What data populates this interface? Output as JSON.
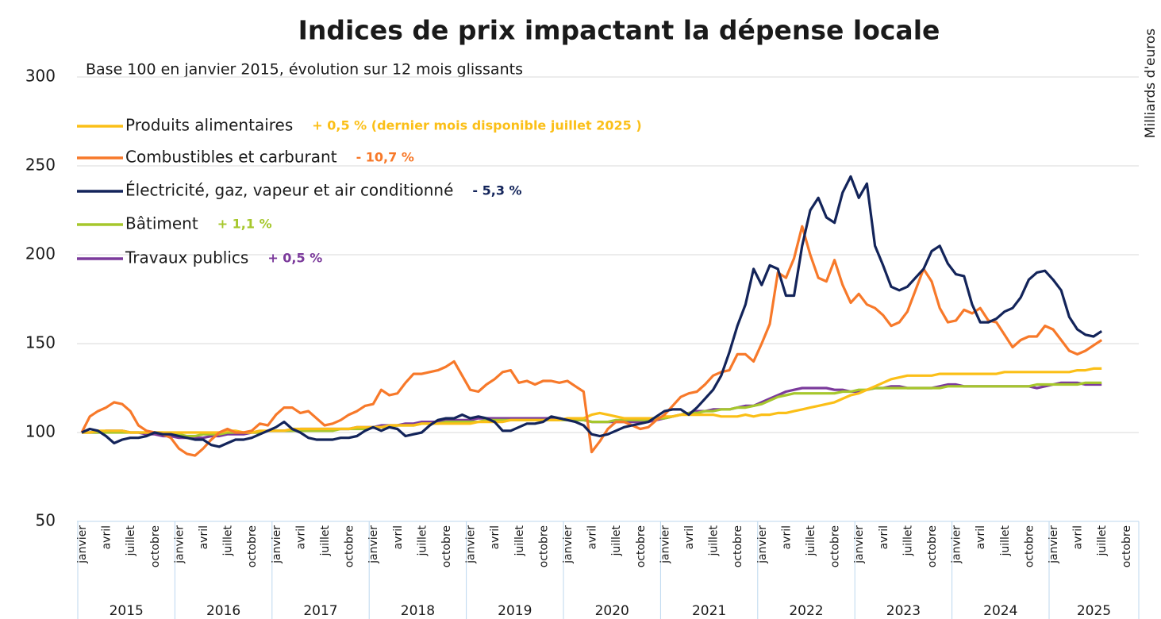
{
  "chart_data": {
    "type": "line",
    "title": "Indices de prix impactant la dépense locale",
    "subtitle": "Base 100 en janvier 2015, évolution sur 12 mois glissants",
    "side_label": "Milliards d'euros",
    "legend": "top-left",
    "grid": true,
    "ylim": [
      50,
      300
    ],
    "yticks": [
      50,
      100,
      150,
      200,
      250,
      300
    ],
    "year_groups": [
      "2015",
      "2016",
      "2017",
      "2018",
      "2019",
      "2020",
      "2021",
      "2022",
      "2023",
      "2024",
      "2025"
    ],
    "categories": [
      "janvier",
      null,
      null,
      "avril",
      null,
      null,
      "juillet",
      null,
      null,
      "octobre",
      null,
      null,
      "janvier",
      null,
      null,
      "avril",
      null,
      null,
      "juillet",
      null,
      null,
      "octobre",
      null,
      null,
      "janvier",
      null,
      null,
      "avril",
      null,
      null,
      "juillet",
      null,
      null,
      "octobre",
      null,
      null,
      "janvier",
      null,
      null,
      "avril",
      null,
      null,
      "juillet",
      null,
      null,
      "octobre",
      null,
      null,
      "janvier",
      null,
      null,
      "avril",
      null,
      null,
      "juillet",
      null,
      null,
      "octobre",
      null,
      null,
      "janvier",
      null,
      null,
      "avril",
      null,
      null,
      "juillet",
      null,
      null,
      "octobre",
      null,
      null,
      "janvier",
      null,
      null,
      "avril",
      null,
      null,
      "juillet",
      null,
      null,
      "octobre",
      null,
      null,
      "janvier",
      null,
      null,
      "avril",
      null,
      null,
      "juillet",
      null,
      null,
      "octobre",
      null,
      null,
      "janvier",
      null,
      null,
      "avril",
      null,
      null,
      "juillet",
      null,
      null,
      "octobre",
      null,
      null,
      "janvier",
      null,
      null,
      "avril",
      null,
      null,
      "juillet",
      null,
      null,
      "octobre",
      null,
      null,
      "janvier",
      null,
      null,
      "avril",
      null,
      null,
      "juillet",
      null,
      null,
      "octobre"
    ],
    "series": [
      {
        "name": "Produits alimentaires",
        "change": "+ 0,5 % (dernier mois disponible  juillet 2025 )",
        "color": "#fbbf17",
        "values": [
          100,
          100,
          101,
          101,
          101,
          101,
          100,
          100,
          100,
          100,
          100,
          100,
          100,
          100,
          100,
          100,
          100,
          100,
          101,
          101,
          100,
          100,
          101,
          101,
          101,
          101,
          102,
          102,
          102,
          102,
          102,
          102,
          102,
          102,
          103,
          103,
          103,
          103,
          104,
          104,
          104,
          104,
          105,
          105,
          105,
          105,
          105,
          105,
          105,
          106,
          106,
          106,
          106,
          107,
          107,
          107,
          107,
          107,
          107,
          107,
          108,
          108,
          108,
          110,
          111,
          110,
          109,
          108,
          108,
          108,
          108,
          108,
          109,
          109,
          110,
          110,
          110,
          110,
          110,
          109,
          109,
          109,
          110,
          109,
          110,
          110,
          111,
          111,
          112,
          113,
          114,
          115,
          116,
          117,
          119,
          121,
          122,
          124,
          126,
          128,
          130,
          131,
          132,
          132,
          132,
          132,
          133,
          133,
          133,
          133,
          133,
          133,
          133,
          133,
          134,
          134,
          134,
          134,
          134,
          134,
          134,
          134,
          134,
          135,
          135,
          136,
          136,
          null,
          null,
          null
        ]
      },
      {
        "name": "Combustibles et carburant",
        "change": "- 10,7 %",
        "color": "#f7792a",
        "values": [
          100,
          109,
          112,
          114,
          117,
          116,
          112,
          104,
          101,
          100,
          99,
          97,
          91,
          88,
          87,
          91,
          96,
          100,
          102,
          100,
          100,
          101,
          105,
          104,
          110,
          114,
          114,
          111,
          112,
          108,
          104,
          105,
          107,
          110,
          112,
          115,
          116,
          124,
          121,
          122,
          128,
          133,
          133,
          134,
          135,
          137,
          140,
          132,
          124,
          123,
          127,
          130,
          134,
          135,
          128,
          129,
          127,
          129,
          129,
          128,
          129,
          126,
          123,
          89,
          95,
          102,
          106,
          106,
          104,
          102,
          103,
          107,
          110,
          115,
          120,
          122,
          123,
          127,
          132,
          134,
          135,
          144,
          144,
          140,
          150,
          161,
          190,
          187,
          198,
          216,
          200,
          187,
          185,
          197,
          183,
          173,
          178,
          172,
          170,
          166,
          160,
          162,
          168,
          180,
          192,
          185,
          170,
          162,
          163,
          169,
          167,
          170,
          163,
          162,
          155,
          148,
          152,
          154,
          154,
          160,
          158,
          152,
          146,
          144,
          146,
          149,
          152,
          null,
          null,
          null
        ]
      },
      {
        "name": "Électricité, gaz, vapeur et air conditionné",
        "change": "- 5,3 %",
        "color": "#13245a",
        "values": [
          100,
          102,
          101,
          98,
          94,
          96,
          97,
          97,
          98,
          100,
          99,
          99,
          98,
          97,
          96,
          96,
          93,
          92,
          94,
          96,
          96,
          97,
          99,
          101,
          103,
          106,
          102,
          100,
          97,
          96,
          96,
          96,
          97,
          97,
          98,
          101,
          103,
          101,
          103,
          102,
          98,
          99,
          100,
          104,
          107,
          108,
          108,
          110,
          108,
          109,
          108,
          106,
          101,
          101,
          103,
          105,
          105,
          106,
          109,
          108,
          107,
          106,
          104,
          99,
          98,
          99,
          101,
          103,
          104,
          105,
          106,
          109,
          112,
          113,
          113,
          110,
          114,
          119,
          124,
          132,
          145,
          160,
          172,
          192,
          183,
          194,
          192,
          177,
          177,
          205,
          225,
          232,
          221,
          218,
          235,
          244,
          232,
          240,
          205,
          194,
          182,
          180,
          182,
          187,
          192,
          202,
          205,
          195,
          189,
          188,
          172,
          162,
          162,
          164,
          168,
          170,
          176,
          186,
          190,
          191,
          186,
          180,
          165,
          158,
          155,
          154,
          157,
          null,
          null,
          null
        ]
      },
      {
        "name": "Bâtiment",
        "change": "+ 1,1 %",
        "color": "#a6c72c",
        "values": [
          100,
          100,
          100,
          100,
          100,
          100,
          100,
          100,
          100,
          100,
          100,
          99,
          99,
          98,
          98,
          99,
          99,
          99,
          100,
          100,
          100,
          100,
          100,
          101,
          101,
          101,
          101,
          101,
          101,
          101,
          101,
          101,
          102,
          102,
          102,
          102,
          103,
          103,
          103,
          104,
          104,
          104,
          105,
          105,
          105,
          106,
          106,
          106,
          106,
          106,
          107,
          107,
          107,
          107,
          107,
          107,
          107,
          107,
          107,
          107,
          107,
          107,
          107,
          106,
          106,
          106,
          107,
          107,
          107,
          107,
          107,
          108,
          108,
          109,
          110,
          111,
          111,
          112,
          112,
          113,
          113,
          114,
          114,
          115,
          116,
          118,
          120,
          121,
          122,
          122,
          122,
          122,
          122,
          122,
          123,
          123,
          124,
          124,
          125,
          125,
          125,
          125,
          125,
          125,
          125,
          125,
          125,
          126,
          126,
          126,
          126,
          126,
          126,
          126,
          126,
          126,
          126,
          126,
          127,
          127,
          127,
          127,
          127,
          127,
          128,
          128,
          128,
          null,
          null,
          null
        ]
      },
      {
        "name": "Travaux publics",
        "change": "+ 0,5 %",
        "color": "#7b3a9b",
        "values": [
          100,
          100,
          100,
          101,
          101,
          101,
          100,
          100,
          99,
          99,
          98,
          98,
          97,
          97,
          97,
          97,
          98,
          98,
          99,
          99,
          99,
          100,
          100,
          101,
          101,
          101,
          101,
          102,
          102,
          102,
          102,
          102,
          102,
          102,
          103,
          103,
          103,
          104,
          104,
          104,
          105,
          105,
          106,
          106,
          106,
          107,
          107,
          107,
          107,
          108,
          108,
          108,
          108,
          108,
          108,
          108,
          108,
          108,
          108,
          108,
          107,
          107,
          107,
          106,
          106,
          106,
          106,
          106,
          106,
          106,
          106,
          107,
          108,
          109,
          110,
          111,
          112,
          112,
          113,
          113,
          113,
          114,
          115,
          115,
          117,
          119,
          121,
          123,
          124,
          125,
          125,
          125,
          125,
          124,
          124,
          123,
          123,
          124,
          125,
          125,
          126,
          126,
          125,
          125,
          125,
          125,
          126,
          127,
          127,
          126,
          126,
          126,
          126,
          126,
          126,
          126,
          126,
          126,
          125,
          126,
          127,
          128,
          128,
          128,
          127,
          127,
          127,
          null,
          null,
          null
        ]
      }
    ]
  }
}
